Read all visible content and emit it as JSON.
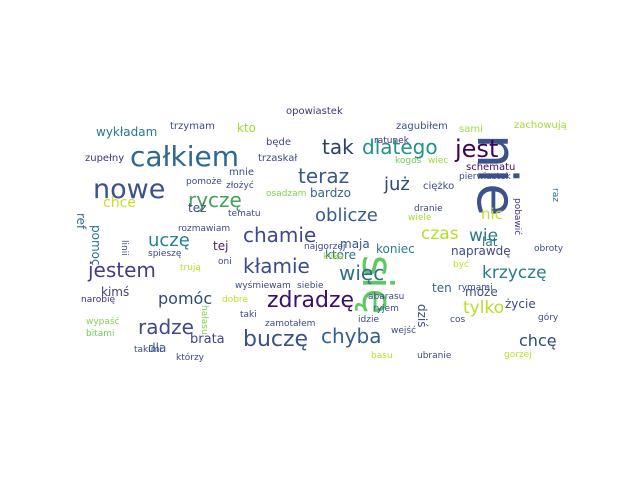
{
  "words": [
    {
      "text": "nie",
      "color": "#3b528b",
      "rotate": true
    },
    {
      "text": "się",
      "color": "#5ec962",
      "rotate": true
    },
    {
      "text": "całkiem",
      "color": "#31688e"
    },
    {
      "text": "nowe",
      "color": "#3b528b"
    },
    {
      "text": "jest",
      "color": "#440154"
    },
    {
      "text": "dlatego",
      "color": "#21918c"
    },
    {
      "text": "tak",
      "color": "#2c3e69"
    },
    {
      "text": "teraz",
      "color": "#38598c"
    },
    {
      "text": "ryczę",
      "color": "#44a25e"
    },
    {
      "text": "już",
      "color": "#2d4a7a"
    },
    {
      "text": "oblicze",
      "color": "#365c8d"
    },
    {
      "text": "chamie",
      "color": "#3e4a89"
    },
    {
      "text": "uczę",
      "color": "#26828e"
    },
    {
      "text": "czas",
      "color": "#b5de2b"
    },
    {
      "text": "wie",
      "color": "#2a788e"
    },
    {
      "text": "jestem",
      "color": "#433e85"
    },
    {
      "text": "kłamie",
      "color": "#3a4d8a"
    },
    {
      "text": "więc",
      "color": "#2e6e8e"
    },
    {
      "text": "krzyczę",
      "color": "#287c8e"
    },
    {
      "text": "zdradzę",
      "color": "#3b0f70"
    },
    {
      "text": "pomóc",
      "color": "#2e4a7a"
    },
    {
      "text": "radze",
      "color": "#3f4889"
    },
    {
      "text": "chyba",
      "color": "#35608d"
    },
    {
      "text": "buczę",
      "color": "#3b528b"
    },
    {
      "text": "tylko",
      "color": "#b8de29"
    },
    {
      "text": "chcę",
      "color": "#2e4a7a"
    },
    {
      "text": "chce",
      "color": "#c8e020"
    },
    {
      "text": "nic",
      "color": "#bddf26"
    },
    {
      "text": "wykładam",
      "color": "#2a768e"
    },
    {
      "text": "kto",
      "color": "#9dd93b"
    },
    {
      "text": "bardzo",
      "color": "#32648e"
    },
    {
      "text": "maja",
      "color": "#39568c"
    },
    {
      "text": "lat",
      "color": "#2c728e"
    },
    {
      "text": "naprawdę",
      "color": "#3e4989"
    },
    {
      "text": "koniec",
      "color": "#287d8e"
    },
    {
      "text": "które",
      "color": "#2d708e"
    },
    {
      "text": "ref",
      "color": "#2d708e",
      "rotate": true
    },
    {
      "text": "pomoc",
      "color": "#2c718e",
      "rotate": true
    },
    {
      "text": "też",
      "color": "#3e4a89"
    },
    {
      "text": "tej",
      "color": "#482173"
    },
    {
      "text": "kimś",
      "color": "#433e85"
    },
    {
      "text": "dla",
      "color": "#34618d"
    },
    {
      "text": "brata",
      "color": "#3f4788"
    },
    {
      "text": "życie",
      "color": "#3e4a89"
    },
    {
      "text": "może",
      "color": "#3b528b"
    },
    {
      "text": "dziś",
      "color": "#3c4f8a",
      "rotate": true
    },
    {
      "text": "ten",
      "color": "#31688e"
    },
    {
      "text": "trzymam",
      "color": "#3e4989"
    },
    {
      "text": "opowiastek",
      "color": "#46327e"
    },
    {
      "text": "zagubiłem",
      "color": "#3b528b"
    },
    {
      "text": "zachowują",
      "color": "#a0da39"
    },
    {
      "text": "sami",
      "color": "#a2da37"
    },
    {
      "text": "będe",
      "color": "#3e4989"
    },
    {
      "text": "ratunek",
      "color": "#46327e"
    },
    {
      "text": "kogoś",
      "color": "#6ccd5a"
    },
    {
      "text": "wiec",
      "color": "#9fda3a"
    },
    {
      "text": "schematu",
      "color": "#46085c"
    },
    {
      "text": "pierwiastek",
      "color": "#3e4a89"
    },
    {
      "text": "zupełny",
      "color": "#46327e"
    },
    {
      "text": "mnie",
      "color": "#3e4989"
    },
    {
      "text": "trzaskał",
      "color": "#3e4989"
    },
    {
      "text": "złożyć",
      "color": "#3e4989"
    },
    {
      "text": "pomoże",
      "color": "#3e4989"
    },
    {
      "text": "osadzam",
      "color": "#7fd34e"
    },
    {
      "text": "ciężko",
      "color": "#3e4a89"
    },
    {
      "text": "pobawić",
      "color": "#46327e",
      "rotate": true
    },
    {
      "text": "raz",
      "color": "#2c728e",
      "rotate": true
    },
    {
      "text": "tematu",
      "color": "#3e4989"
    },
    {
      "text": "dranie",
      "color": "#3e4a89"
    },
    {
      "text": "wiele",
      "color": "#a5db36"
    },
    {
      "text": "linii",
      "color": "#3e4a89",
      "rotate": true
    },
    {
      "text": "rozmawiam",
      "color": "#3e4989"
    },
    {
      "text": "najgorzej",
      "color": "#3e4989"
    },
    {
      "text": "obroty",
      "color": "#3e4a89"
    },
    {
      "text": "spieszę",
      "color": "#3e4a89"
    },
    {
      "text": "oni",
      "color": "#3e4a89"
    },
    {
      "text": "kilka",
      "color": "#a5db36"
    },
    {
      "text": "być",
      "color": "#bddf26"
    },
    {
      "text": "trują",
      "color": "#bddf26"
    },
    {
      "text": "rymami",
      "color": "#3e4a89"
    },
    {
      "text": "wyśmiewam",
      "color": "#3e4a89"
    },
    {
      "text": "siebie",
      "color": "#3e4a89"
    },
    {
      "text": "narobię",
      "color": "#46327e"
    },
    {
      "text": "abarasu",
      "color": "#3e4a89"
    },
    {
      "text": "ryjem",
      "color": "#3e4a89"
    },
    {
      "text": "dobre",
      "color": "#bddf26"
    },
    {
      "text": "góry",
      "color": "#3e4a89"
    },
    {
      "text": "wypaść",
      "color": "#7fd34e"
    },
    {
      "text": "hałasu",
      "color": "#7fd34e",
      "rotate": true
    },
    {
      "text": "taki",
      "color": "#3e4989"
    },
    {
      "text": "zamotałem",
      "color": "#3e4989"
    },
    {
      "text": "cos",
      "color": "#3e4a89"
    },
    {
      "text": "bitami",
      "color": "#6ccd5a"
    },
    {
      "text": "idzie",
      "color": "#3e4a89"
    },
    {
      "text": "wejść",
      "color": "#3e4a89"
    },
    {
      "text": "takimi",
      "color": "#3e4989"
    },
    {
      "text": "którzy",
      "color": "#3e4989"
    },
    {
      "text": "basu",
      "color": "#bddf26"
    },
    {
      "text": "ubranie",
      "color": "#3e4a89"
    },
    {
      "text": "gorzej",
      "color": "#bddf26"
    }
  ]
}
